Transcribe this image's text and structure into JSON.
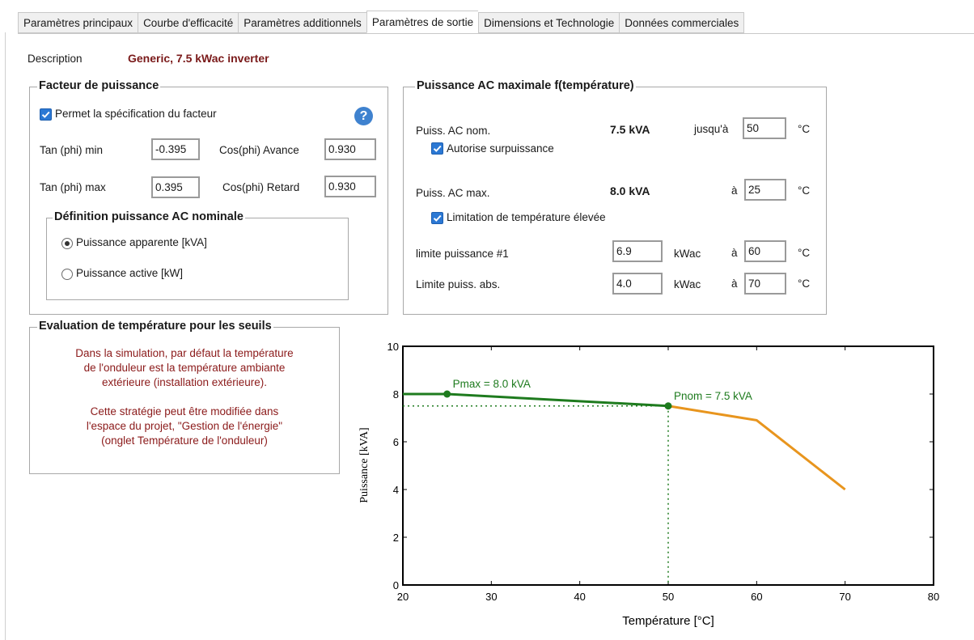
{
  "tabs": [
    "Paramètres principaux",
    "Courbe d'efficacité",
    "Paramètres additionnels",
    "Paramètres de sortie",
    "Dimensions et Technologie",
    "Données commerciales"
  ],
  "description": {
    "label": "Description",
    "value": "Generic, 7.5 kWac inverter"
  },
  "facteur": {
    "title": "Facteur de puissance",
    "checkbox_label": "Permet la spécification du facteur",
    "help_icon": "question-icon",
    "tan_min_label": "Tan (phi) min",
    "tan_min_value": "-0.395",
    "cos_avance_label": "Cos(phi) Avance",
    "cos_avance_value": "0.930",
    "tan_max_label": "Tan (phi) max",
    "tan_max_value": "0.395",
    "cos_retard_label": "Cos(phi) Retard",
    "cos_retard_value": "0.930",
    "definition_title": "Définition puissance AC nominale",
    "radio_apparent": "Puissance apparente [kVA]",
    "radio_active": "Puissance active [kW]"
  },
  "puissance": {
    "title": "Puissance AC maximale f(température)",
    "nom_label": "Puiss. AC nom.",
    "nom_value": "7.5 kVA",
    "jusqua": "jusqu'à",
    "nom_temp": "50",
    "unit_c": "°C",
    "surpuissance": "Autorise surpuissance",
    "max_label": "Puiss. AC max.",
    "max_value": "8.0 kVA",
    "a": "à",
    "max_temp": "25",
    "limitation": "Limitation de température élevée",
    "limite1_label": "limite puissance #1",
    "limite1_value": "6.9",
    "unit_kwac": "kWac",
    "limite1_temp": "60",
    "limite_abs_label": "Limite puiss. abs.",
    "limite_abs_value": "4.0",
    "limite_abs_temp": "70"
  },
  "evaluation": {
    "title": "Evaluation de température pour les seuils",
    "text1": [
      "Dans la simulation, par défaut la température",
      "de l'onduleur est la température ambiante",
      "extérieure (installation extérieure)."
    ],
    "text2": [
      "Cette stratégie peut être modifiée dans",
      "l'espace du projet, \"Gestion de l'énergie\"",
      "(onglet Température de l'onduleur)"
    ]
  },
  "chart_data": {
    "type": "line",
    "xlabel": "Température [°C]",
    "ylabel": "Puissance [kVA]",
    "xlim": [
      20,
      80
    ],
    "ylim": [
      0,
      10
    ],
    "xticks": [
      20,
      30,
      40,
      50,
      60,
      70,
      80
    ],
    "yticks": [
      0,
      2,
      4,
      6,
      8,
      10
    ],
    "series": [
      {
        "color": "#1e7b1e",
        "x": [
          20,
          25,
          50
        ],
        "y": [
          8.0,
          8.0,
          7.5
        ]
      },
      {
        "color": "#e8951e",
        "x": [
          50,
          60,
          70
        ],
        "y": [
          7.5,
          6.9,
          4.0
        ]
      }
    ],
    "markers": [
      {
        "x": 25,
        "y": 8.0,
        "label": "Pmax = 8.0 kVA",
        "color": "#1e7b1e"
      },
      {
        "x": 50,
        "y": 7.5,
        "label": "Pnom = 7.5 kVA",
        "color": "#1e7b1e"
      }
    ],
    "reference_lines": {
      "x": 50,
      "y": 7.5,
      "color": "#1e7b1e",
      "style": "dotted"
    }
  }
}
